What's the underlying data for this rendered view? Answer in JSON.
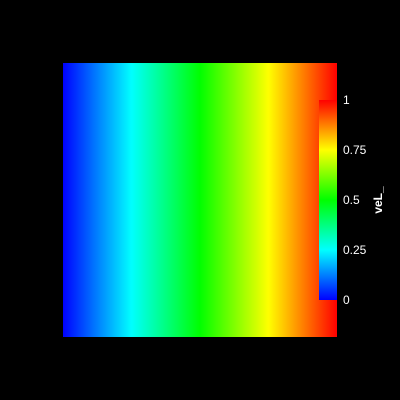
{
  "scene": {
    "background_color": "#000000",
    "text_color": "#ffffff",
    "field_axis": "x",
    "colormap": [
      "#0000ff",
      "#00ffff",
      "#00ff00",
      "#ffff00",
      "#ff0000"
    ]
  },
  "scalar_bar": {
    "title": "veL_",
    "range": [
      0,
      1
    ],
    "ticks": [
      {
        "value": 1,
        "label": "1"
      },
      {
        "value": 0.75,
        "label": "0.75"
      },
      {
        "value": 0.5,
        "label": "0.5"
      },
      {
        "value": 0.25,
        "label": "0.25"
      },
      {
        "value": 0,
        "label": "0"
      }
    ]
  }
}
